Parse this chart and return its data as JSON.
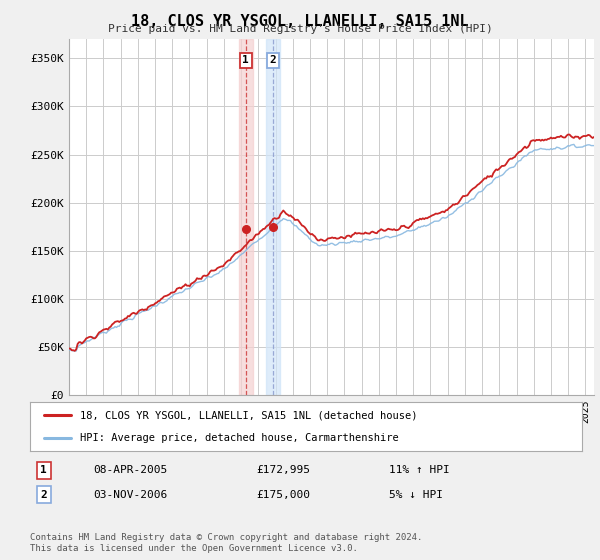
{
  "title": "18, CLOS YR YSGOL, LLANELLI, SA15 1NL",
  "subtitle": "Price paid vs. HM Land Registry's House Price Index (HPI)",
  "ylim": [
    0,
    370000
  ],
  "yticks": [
    0,
    50000,
    100000,
    150000,
    200000,
    250000,
    300000,
    350000
  ],
  "ytick_labels": [
    "£0",
    "£50K",
    "£100K",
    "£150K",
    "£200K",
    "£250K",
    "£300K",
    "£350K"
  ],
  "bg_color": "#f0f0f0",
  "plot_bg_color": "#ffffff",
  "grid_color": "#cccccc",
  "hpi_color": "#88b8e0",
  "price_color": "#cc2222",
  "sale1_date": 2005.27,
  "sale1_price": 172995,
  "sale2_date": 2006.84,
  "sale2_price": 175000,
  "legend_price_label": "18, CLOS YR YSGOL, LLANELLI, SA15 1NL (detached house)",
  "legend_hpi_label": "HPI: Average price, detached house, Carmarthenshire",
  "footer": "Contains HM Land Registry data © Crown copyright and database right 2024.\nThis data is licensed under the Open Government Licence v3.0.",
  "xmin": 1995,
  "xmax": 2025.5
}
